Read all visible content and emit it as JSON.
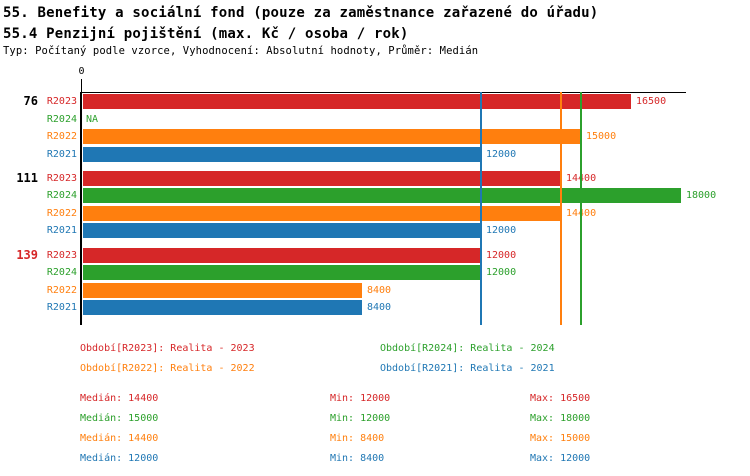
{
  "header": {
    "title_line1": "55. Benefity a sociální fond (pouze za zaměstnance zařazené do úřadu)",
    "title_line2": "55.4 Penzijní pojištění (max. Kč / osoba / rok)",
    "subtitle": "Typ: Počítaný podle vzorce, Vyhodnocení: Absolutní hodnoty, Průměr: Medián"
  },
  "colors": {
    "R2023": "#d62728",
    "R2024": "#2ca02c",
    "R2022": "#ff7f0e",
    "R2021": "#1f77b4",
    "axis": "#000000"
  },
  "chart_data": {
    "type": "bar",
    "orientation": "horizontal",
    "title": "55.4 Penzijní pojištění (max. Kč / osoba / rok)",
    "xlim": [
      0,
      18000
    ],
    "axis_origin_label": "0",
    "na_label": "NA",
    "grid": false,
    "series_order": [
      "R2023",
      "R2024",
      "R2022",
      "R2021"
    ],
    "groups": [
      {
        "label": "76",
        "label_color": "#000000",
        "values": {
          "R2023": 16500,
          "R2024": null,
          "R2022": 15000,
          "R2021": 12000
        }
      },
      {
        "label": "111",
        "label_color": "#000000",
        "values": {
          "R2023": 14400,
          "R2024": 18000,
          "R2022": 14400,
          "R2021": 12000
        }
      },
      {
        "label": "139",
        "label_color": "#d62728",
        "values": {
          "R2023": 12000,
          "R2024": 12000,
          "R2022": 8400,
          "R2021": 8400
        }
      }
    ],
    "median_lines": [
      {
        "series": "R2023",
        "value": 14400
      },
      {
        "series": "R2021",
        "value": 12000
      },
      {
        "series": "R2022",
        "value": 14400
      },
      {
        "series": "R2024",
        "value": 15000
      }
    ]
  },
  "legend": {
    "entries": [
      {
        "series": "R2023",
        "label": "Období[R2023]: Realita - 2023",
        "col": 0,
        "row": 0
      },
      {
        "series": "R2024",
        "label": "Období[R2024]: Realita - 2024",
        "col": 1,
        "row": 0
      },
      {
        "series": "R2022",
        "label": "Období[R2022]: Realita - 2022",
        "col": 0,
        "row": 1
      },
      {
        "series": "R2021",
        "label": "Období[R2021]: Realita - 2021",
        "col": 1,
        "row": 1
      }
    ]
  },
  "stats": {
    "median_label": "Medián",
    "min_label": "Min",
    "max_label": "Max",
    "rows": [
      {
        "series": "R2023",
        "median": 14400,
        "min": 12000,
        "max": 16500
      },
      {
        "series": "R2024",
        "median": 15000,
        "min": 12000,
        "max": 18000
      },
      {
        "series": "R2022",
        "median": 14400,
        "min": 8400,
        "max": 15000
      },
      {
        "series": "R2021",
        "median": 12000,
        "min": 8400,
        "max": 12000
      }
    ]
  }
}
